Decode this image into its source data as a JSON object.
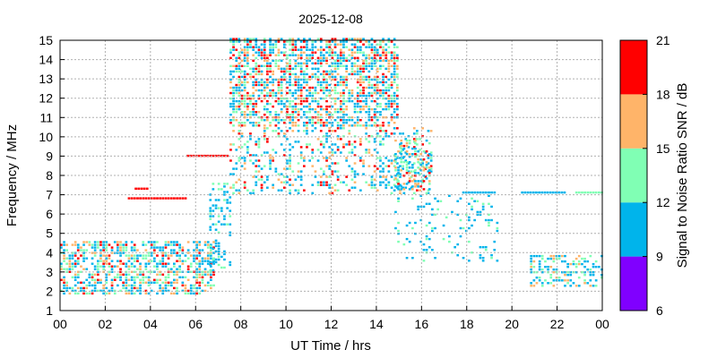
{
  "chart_data": {
    "type": "heatmap",
    "title": "2025-12-08",
    "xlabel": "UT Time / hrs",
    "ylabel": "Frequency / MHz",
    "xlim": [
      0,
      24
    ],
    "ylim": [
      1,
      15
    ],
    "x_ticks": [
      "00",
      "02",
      "04",
      "06",
      "08",
      "10",
      "12",
      "14",
      "16",
      "18",
      "20",
      "22",
      "00"
    ],
    "y_ticks": [
      "1",
      "2",
      "3",
      "4",
      "5",
      "6",
      "7",
      "8",
      "9",
      "10",
      "11",
      "12",
      "13",
      "14",
      "15"
    ],
    "grid": true,
    "colorbar": {
      "label": "Signal to Noise Ratio SNR / dB",
      "range": [
        6,
        21
      ],
      "ticks": [
        "6",
        "9",
        "12",
        "15",
        "18",
        "21"
      ],
      "bands": [
        {
          "from": 6,
          "to": 9,
          "color": "#8000ff"
        },
        {
          "from": 9,
          "to": 12,
          "color": "#00b4eb"
        },
        {
          "from": 12,
          "to": 15,
          "color": "#80ffb4"
        },
        {
          "from": 15,
          "to": 18,
          "color": "#ffb469"
        },
        {
          "from": 18,
          "to": 21,
          "color": "#ff0000"
        }
      ]
    },
    "regions": [
      {
        "t0": 0.0,
        "t1": 6.8,
        "f0": 1.8,
        "f1": 4.6,
        "density": 0.55,
        "snr": [
          9,
          20
        ]
      },
      {
        "t0": 7.5,
        "t1": 15.0,
        "f0": 10.5,
        "f1": 15.0,
        "density": 0.6,
        "snr": [
          9,
          21
        ]
      },
      {
        "t0": 7.5,
        "t1": 16.4,
        "f0": 7.0,
        "f1": 10.5,
        "density": 0.25,
        "snr": [
          9,
          20
        ]
      },
      {
        "t0": 14.8,
        "t1": 16.4,
        "f0": 7.2,
        "f1": 9.8,
        "density": 0.5,
        "snr": [
          9,
          21
        ]
      },
      {
        "t0": 14.8,
        "t1": 19.5,
        "f0": 3.5,
        "f1": 7.0,
        "density": 0.12,
        "snr": [
          9,
          14
        ]
      },
      {
        "t0": 20.8,
        "t1": 24.0,
        "f0": 2.2,
        "f1": 3.8,
        "density": 0.45,
        "snr": [
          9,
          18
        ]
      },
      {
        "t0": 6.6,
        "t1": 7.6,
        "f0": 3.0,
        "f1": 7.5,
        "density": 0.3,
        "snr": [
          9,
          14
        ]
      }
    ],
    "lines": [
      {
        "t0": 5.6,
        "t1": 7.4,
        "f": 9.0,
        "snr": 20
      },
      {
        "t0": 3.0,
        "t1": 5.6,
        "f": 6.8,
        "snr": 20
      },
      {
        "t0": 3.3,
        "t1": 3.9,
        "f": 7.3,
        "snr": 20
      },
      {
        "t0": 20.4,
        "t1": 22.4,
        "f": 7.1,
        "snr": 10
      },
      {
        "t0": 17.8,
        "t1": 19.2,
        "f": 7.1,
        "snr": 10
      },
      {
        "t0": 22.8,
        "t1": 24.0,
        "f": 7.1,
        "snr": 13
      }
    ]
  }
}
